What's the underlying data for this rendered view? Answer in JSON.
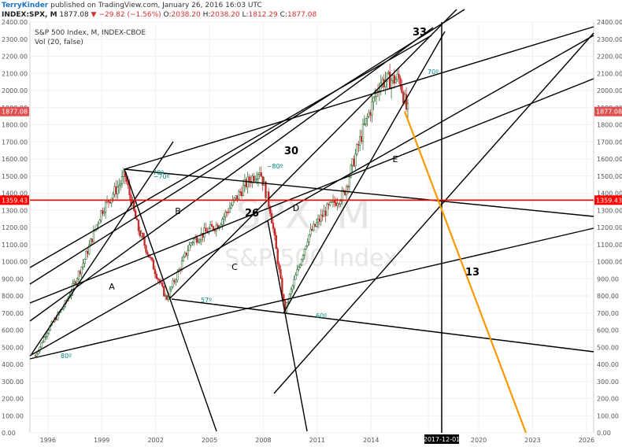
{
  "header": {
    "publisher": "TerryKinder",
    "published_text": "published on TradingView.com, January 26, 2016 16:03 UTC",
    "symbol": "INDEX:SPX, M",
    "last": "1877.08",
    "change": "▼ −29.82 (−1.56%)",
    "open_label": "O:",
    "open": "2038.20",
    "high_label": "H:",
    "high": "2038.20",
    "low_label": "L:",
    "low": "1812.29",
    "close_label": "C:",
    "close": "1877.08"
  },
  "legend": {
    "title": "S&P 500 Index, M, INDEX-CBOE",
    "vol": "Vol (20, false)"
  },
  "watermark": {
    "symbol": "SPX, M",
    "name": "S&P 500 Index"
  },
  "colors": {
    "up": "#1b5e20",
    "down": "#c62828",
    "accent_red": "#ff0000",
    "projection": "#ff9800",
    "angle_label": "#00897b"
  },
  "chart_data": {
    "type": "candlestick",
    "ylim": [
      0,
      2400
    ],
    "y_ticks": [
      "0.00",
      "100.00",
      "200.00",
      "300.00",
      "400.00",
      "500.00",
      "600.00",
      "700.00",
      "800.00",
      "900.00",
      "1000.00",
      "1100.00",
      "1200.00",
      "1300.00",
      "1400.00",
      "1500.00",
      "1600.00",
      "1700.00",
      "1800.00",
      "1900.00",
      "2000.00",
      "2100.00",
      "2200.00",
      "2300.00",
      "2400.00"
    ],
    "x_ticks": [
      "1996",
      "1999",
      "2002",
      "2005",
      "2008",
      "2011",
      "2014",
      "20",
      "2020",
      "2023",
      "2026"
    ],
    "price_markers": [
      {
        "label": "1877.08",
        "value": 1877.08
      },
      {
        "label": "1359.43",
        "value": 1359.43
      }
    ],
    "date_marker": "2017-12-01",
    "trendline_anchors": {
      "x": [
        1995.3,
        1996,
        1997,
        1998,
        1999,
        2000.3,
        2001,
        2002.6,
        2004,
        2005.5,
        2007,
        2007.8,
        2008.4,
        2009.2,
        2010.5,
        2011.5,
        2012.5,
        2013.5,
        2014.5,
        2015.6,
        2016
      ],
      "close": [
        450,
        600,
        760,
        1000,
        1300,
        1500,
        1200,
        780,
        1120,
        1220,
        1450,
        1540,
        1300,
        710,
        1150,
        1300,
        1400,
        1750,
        2050,
        2070,
        1877
      ]
    },
    "annotations": {
      "labels": [
        "A",
        "B",
        "C",
        "D",
        "E",
        "26",
        "30",
        "33",
        "13"
      ],
      "angles": [
        "80º",
        "70º",
        "~70º",
        "57º",
        "~80º",
        "60º",
        "70º"
      ]
    }
  }
}
